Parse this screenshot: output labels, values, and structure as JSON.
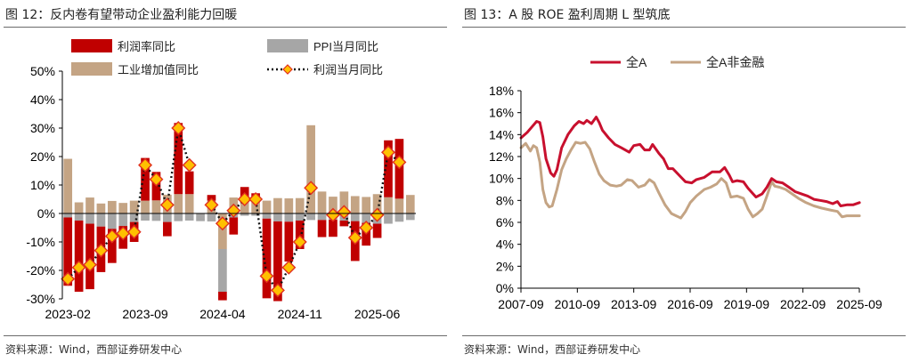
{
  "left": {
    "title": "图 12：反内卷有望带动企业盈利能力回暖",
    "source": "资料来源：Wind，西部证券研发中心"
  },
  "right": {
    "title": "图 13：A 股 ROE 盈利周期 L 型筑底",
    "source": "资料来源：Wind，西部证券研发中心"
  },
  "colors": {
    "profit": "#c00000",
    "ppi": "#a6a6a6",
    "industry": "#c4a484",
    "marker_fill": "#ffc000",
    "marker_stroke": "#e0301e",
    "all_a": "#c8102e",
    "all_a_nonfin": "#c4a484"
  },
  "chart_data": [
    {
      "type": "bar",
      "title": "",
      "ylim": [
        -30,
        50
      ],
      "y_ticks": [
        "-30%",
        "-20%",
        "-10%",
        "0%",
        "10%",
        "20%",
        "30%",
        "40%",
        "50%"
      ],
      "x_tick_labels": [
        "2023-02",
        "2023-09",
        "2024-04",
        "2024-11",
        "2025-06"
      ],
      "x_tick_indices": [
        0,
        7,
        14,
        21,
        28
      ],
      "categories": [
        "2023-02",
        "2023-03",
        "2023-04",
        "2023-05",
        "2023-06",
        "2023-07",
        "2023-08",
        "2023-09",
        "2023-10",
        "2023-11",
        "2023-12",
        "2024-01",
        "2024-02",
        "2024-03",
        "2024-04",
        "2024-05",
        "2024-06",
        "2024-07",
        "2024-08",
        "2024-09",
        "2024-10",
        "2024-11",
        "2024-12",
        "2025-01",
        "2025-02",
        "2025-03",
        "2025-04",
        "2025-05",
        "2025-06",
        "2025-07",
        "2025-08",
        "2025-09"
      ],
      "legend": [
        "利润率同比",
        "PPI当月同比",
        "工业增加值同比",
        "利润当月同比"
      ],
      "series": [
        {
          "name": "利润率同比",
          "kind": "bar",
          "values": [
            -24,
            -25,
            -23,
            -16,
            -12,
            -8,
            -7,
            15,
            10,
            -5,
            25,
            8,
            null,
            2,
            -3,
            -6,
            4,
            2,
            -28,
            -28,
            -14,
            -10,
            null,
            -6,
            -6,
            -2,
            -14,
            -8,
            -5,
            20,
            21,
            null
          ]
        },
        {
          "name": "PPI当月同比",
          "kind": "bar",
          "values": [
            -1.4,
            -2.5,
            -3.6,
            -4.6,
            -5.4,
            -4.4,
            -3.0,
            -2.5,
            -2.6,
            -3.0,
            -2.7,
            -2.5,
            -2.7,
            -2.8,
            -15.0,
            -1.4,
            -0.8,
            -0.8,
            -1.8,
            -2.8,
            -2.9,
            -2.5,
            -2.3,
            -2.3,
            -2.2,
            -2.5,
            -2.7,
            -3.3,
            -3.6,
            -3.6,
            -2.9,
            -2.3
          ]
        },
        {
          "name": "工业增加值同比",
          "kind": "bar",
          "values": [
            19.2,
            3.9,
            5.6,
            3.5,
            4.4,
            3.7,
            4.5,
            4.5,
            4.6,
            6.6,
            6.8,
            6.8,
            null,
            4.5,
            -12.5,
            5.6,
            5.3,
            5.1,
            4.5,
            5.4,
            5.3,
            5.4,
            31.0,
            7.7,
            5.9,
            7.7,
            6.1,
            5.8,
            6.8,
            5.7,
            5.2,
            6.5
          ]
        },
        {
          "name": "利润当月同比",
          "kind": "line",
          "values": [
            -23,
            -19,
            -18,
            -13,
            -8,
            -7,
            -6.5,
            17,
            12,
            3,
            30,
            17,
            null,
            3,
            -3.5,
            1,
            5,
            5,
            -22,
            -27,
            -19,
            -10,
            9,
            null,
            -0.5,
            0.5,
            -8.5,
            -5,
            -0.5,
            21.5,
            18,
            null
          ]
        }
      ]
    },
    {
      "type": "line",
      "title": "",
      "ylim": [
        0,
        18
      ],
      "y_ticks": [
        "0%",
        "2%",
        "4%",
        "6%",
        "8%",
        "10%",
        "12%",
        "14%",
        "16%",
        "18%"
      ],
      "x_range": [
        2007.667,
        2025.667
      ],
      "x_tick_labels": [
        "2007-09",
        "2010-09",
        "2013-09",
        "2016-09",
        "2019-09",
        "2022-09",
        "2025-09"
      ],
      "legend": [
        "全A",
        "全A非金融"
      ],
      "series": [
        {
          "name": "全A",
          "points": [
            [
              2007.67,
              13.7
            ],
            [
              2008.0,
              14.2
            ],
            [
              2008.25,
              14.7
            ],
            [
              2008.5,
              15.2
            ],
            [
              2008.67,
              15.1
            ],
            [
              2008.83,
              13.8
            ],
            [
              2009.0,
              11.8
            ],
            [
              2009.25,
              10.5
            ],
            [
              2009.42,
              10.2
            ],
            [
              2009.58,
              10.8
            ],
            [
              2009.83,
              12.8
            ],
            [
              2010.17,
              14.0
            ],
            [
              2010.5,
              14.8
            ],
            [
              2010.75,
              15.2
            ],
            [
              2011.0,
              15.0
            ],
            [
              2011.17,
              15.3
            ],
            [
              2011.42,
              15.0
            ],
            [
              2011.67,
              15.6
            ],
            [
              2011.83,
              15.1
            ],
            [
              2012.0,
              14.4
            ],
            [
              2012.33,
              13.7
            ],
            [
              2012.67,
              13.1
            ],
            [
              2013.0,
              12.8
            ],
            [
              2013.42,
              12.4
            ],
            [
              2013.67,
              13.0
            ],
            [
              2014.0,
              13.1
            ],
            [
              2014.25,
              12.6
            ],
            [
              2014.5,
              12.6
            ],
            [
              2014.67,
              13.1
            ],
            [
              2015.0,
              12.3
            ],
            [
              2015.25,
              11.8
            ],
            [
              2015.5,
              10.9
            ],
            [
              2015.75,
              10.9
            ],
            [
              2016.08,
              10.3
            ],
            [
              2016.42,
              9.7
            ],
            [
              2016.75,
              9.6
            ],
            [
              2017.0,
              9.9
            ],
            [
              2017.42,
              10.1
            ],
            [
              2017.83,
              10.6
            ],
            [
              2018.25,
              10.6
            ],
            [
              2018.5,
              11.0
            ],
            [
              2018.75,
              10.3
            ],
            [
              2018.92,
              9.7
            ],
            [
              2019.17,
              9.8
            ],
            [
              2019.5,
              9.7
            ],
            [
              2019.75,
              9.1
            ],
            [
              2020.17,
              8.3
            ],
            [
              2020.5,
              8.6
            ],
            [
              2020.75,
              9.2
            ],
            [
              2021.0,
              10.0
            ],
            [
              2021.25,
              9.7
            ],
            [
              2021.58,
              9.6
            ],
            [
              2021.92,
              9.2
            ],
            [
              2022.25,
              8.8
            ],
            [
              2022.58,
              8.6
            ],
            [
              2022.92,
              8.4
            ],
            [
              2023.25,
              8.1
            ],
            [
              2023.58,
              8.0
            ],
            [
              2023.92,
              7.9
            ],
            [
              2024.25,
              7.7
            ],
            [
              2024.5,
              7.9
            ],
            [
              2024.67,
              7.5
            ],
            [
              2025.0,
              7.6
            ],
            [
              2025.33,
              7.6
            ],
            [
              2025.67,
              7.8
            ]
          ]
        },
        {
          "name": "全A非金融",
          "points": [
            [
              2007.67,
              12.8
            ],
            [
              2007.92,
              13.2
            ],
            [
              2008.17,
              12.5
            ],
            [
              2008.33,
              13.0
            ],
            [
              2008.5,
              12.8
            ],
            [
              2008.67,
              11.5
            ],
            [
              2008.83,
              9.0
            ],
            [
              2009.0,
              7.8
            ],
            [
              2009.17,
              7.4
            ],
            [
              2009.33,
              7.5
            ],
            [
              2009.58,
              9.0
            ],
            [
              2009.83,
              10.8
            ],
            [
              2010.08,
              11.8
            ],
            [
              2010.33,
              12.6
            ],
            [
              2010.58,
              13.3
            ],
            [
              2010.83,
              13.2
            ],
            [
              2011.08,
              13.3
            ],
            [
              2011.33,
              12.7
            ],
            [
              2011.58,
              11.5
            ],
            [
              2011.83,
              10.4
            ],
            [
              2012.08,
              9.8
            ],
            [
              2012.42,
              9.4
            ],
            [
              2012.75,
              9.3
            ],
            [
              2013.0,
              9.4
            ],
            [
              2013.33,
              9.9
            ],
            [
              2013.58,
              9.8
            ],
            [
              2013.92,
              9.2
            ],
            [
              2014.25,
              9.4
            ],
            [
              2014.5,
              9.9
            ],
            [
              2014.75,
              9.6
            ],
            [
              2015.0,
              8.7
            ],
            [
              2015.33,
              7.6
            ],
            [
              2015.67,
              6.8
            ],
            [
              2015.92,
              6.6
            ],
            [
              2016.17,
              6.4
            ],
            [
              2016.42,
              7.0
            ],
            [
              2016.67,
              7.8
            ],
            [
              2017.0,
              8.4
            ],
            [
              2017.42,
              9.0
            ],
            [
              2017.75,
              9.2
            ],
            [
              2018.08,
              9.5
            ],
            [
              2018.33,
              10.0
            ],
            [
              2018.58,
              9.6
            ],
            [
              2018.83,
              8.3
            ],
            [
              2019.17,
              8.4
            ],
            [
              2019.5,
              8.2
            ],
            [
              2019.75,
              7.2
            ],
            [
              2020.0,
              6.5
            ],
            [
              2020.25,
              6.8
            ],
            [
              2020.5,
              7.2
            ],
            [
              2020.75,
              8.4
            ],
            [
              2021.0,
              9.7
            ],
            [
              2021.17,
              9.3
            ],
            [
              2021.42,
              9.2
            ],
            [
              2021.75,
              9.0
            ],
            [
              2022.08,
              8.6
            ],
            [
              2022.42,
              8.2
            ],
            [
              2022.83,
              7.8
            ],
            [
              2023.25,
              7.5
            ],
            [
              2023.67,
              7.3
            ],
            [
              2024.17,
              7.1
            ],
            [
              2024.5,
              7.0
            ],
            [
              2024.75,
              6.5
            ],
            [
              2025.0,
              6.6
            ],
            [
              2025.42,
              6.6
            ],
            [
              2025.67,
              6.6
            ]
          ]
        }
      ]
    }
  ]
}
